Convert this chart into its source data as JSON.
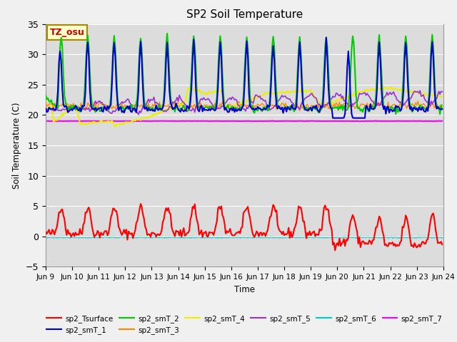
{
  "title": "SP2 Soil Temperature",
  "ylabel": "Soil Temperature (C)",
  "xlabel": "Time",
  "ylim": [
    -5,
    35
  ],
  "xlim": [
    0,
    360
  ],
  "tz_label": "TZ_osu",
  "plot_bg_color": "#dcdcdc",
  "fig_bg_color": "#f0f0f0",
  "series_colors": {
    "sp2_Tsurface": "#ff0000",
    "sp2_smT_1": "#0000cc",
    "sp2_smT_2": "#00cc00",
    "sp2_smT_3": "#ff8800",
    "sp2_smT_4": "#eeee00",
    "sp2_smT_5": "#9933cc",
    "sp2_smT_6": "#00cccc",
    "sp2_smT_7": "#ff00ff"
  },
  "x_tick_labels": [
    "Jun 9",
    "Jun 10",
    "Jun 11",
    "Jun 12",
    "Jun 13",
    "Jun 14",
    "Jun 15",
    "Jun 16",
    "Jun 17",
    "Jun 18",
    "Jun 19",
    "Jun 20",
    "Jun 21",
    "Jun 22",
    "Jun 23",
    "Jun 24"
  ],
  "x_tick_positions": [
    0,
    24,
    48,
    72,
    96,
    120,
    144,
    168,
    192,
    216,
    240,
    264,
    288,
    312,
    336,
    360
  ],
  "yticks": [
    -5,
    0,
    5,
    10,
    15,
    20,
    25,
    30,
    35
  ]
}
